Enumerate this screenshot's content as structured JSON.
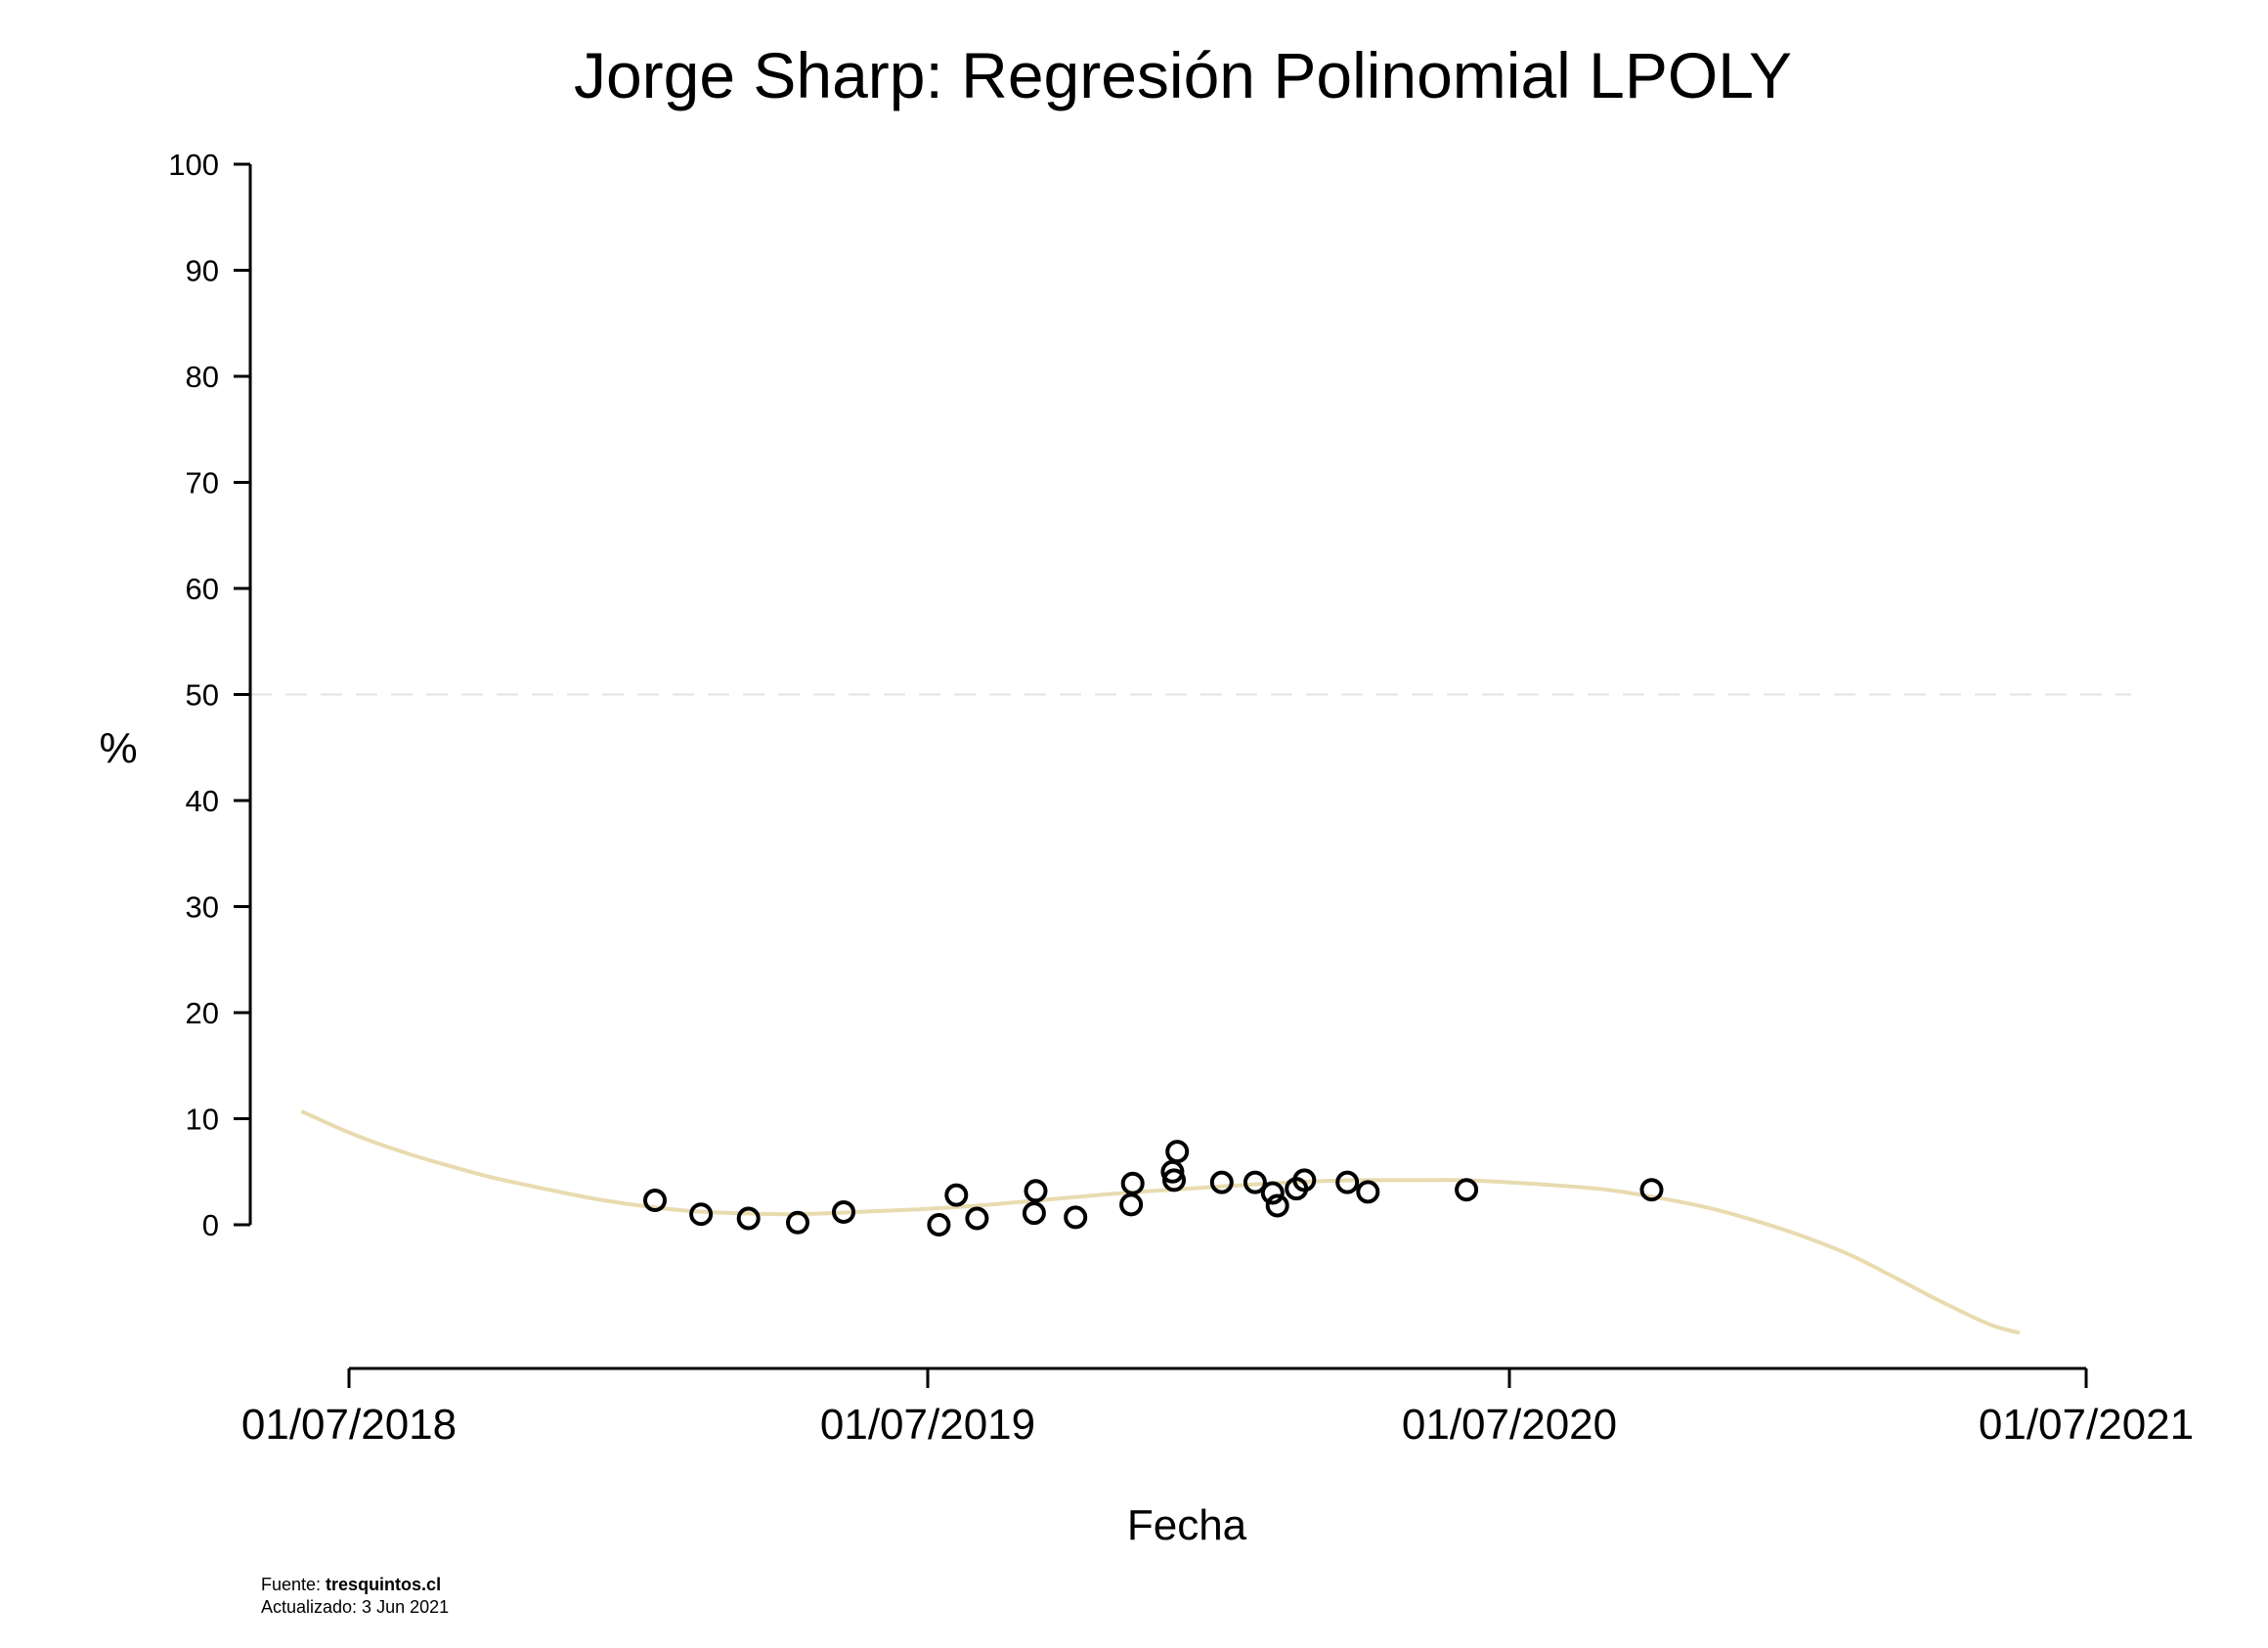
{
  "chart_data": {
    "type": "scatter",
    "title": "Jorge Sharp: Regresión Polinomial LPOLY",
    "xlabel": "Fecha",
    "ylabel": "%",
    "xlim": [
      "2018-05-20",
      "2021-07-25"
    ],
    "ylim": [
      -10,
      100
    ],
    "yticks": [
      0,
      10,
      20,
      30,
      40,
      50,
      60,
      70,
      80,
      90,
      100
    ],
    "xticks": [
      "2018-07-01",
      "2019-07-01",
      "2020-07-01",
      "2021-07-01"
    ],
    "xtick_labels": [
      "01/07/2018",
      "01/07/2019",
      "01/07/2020",
      "01/07/2021"
    ],
    "reference_line": {
      "y": 50,
      "style": "dashed",
      "color": "#e3e3e3"
    },
    "series": [
      {
        "type": "scatter",
        "marker": "open-circle",
        "color": "#000000",
        "points": [
          {
            "x": "2019-01-10",
            "y": 2.3
          },
          {
            "x": "2019-02-08",
            "y": 1.0
          },
          {
            "x": "2019-03-10",
            "y": 0.6
          },
          {
            "x": "2019-04-10",
            "y": 0.2
          },
          {
            "x": "2019-05-09",
            "y": 1.2
          },
          {
            "x": "2019-07-08",
            "y": 0.0
          },
          {
            "x": "2019-07-19",
            "y": 2.8
          },
          {
            "x": "2019-08-01",
            "y": 0.6
          },
          {
            "x": "2019-09-06",
            "y": 1.1
          },
          {
            "x": "2019-09-07",
            "y": 3.2
          },
          {
            "x": "2019-10-02",
            "y": 0.7
          },
          {
            "x": "2019-11-06",
            "y": 1.9
          },
          {
            "x": "2019-11-07",
            "y": 3.9
          },
          {
            "x": "2019-12-02",
            "y": 5.0
          },
          {
            "x": "2019-12-03",
            "y": 4.2
          },
          {
            "x": "2019-12-05",
            "y": 6.9
          },
          {
            "x": "2020-01-02",
            "y": 4.0
          },
          {
            "x": "2020-01-23",
            "y": 4.0
          },
          {
            "x": "2020-02-03",
            "y": 3.0
          },
          {
            "x": "2020-02-06",
            "y": 1.8
          },
          {
            "x": "2020-02-18",
            "y": 3.4
          },
          {
            "x": "2020-02-23",
            "y": 4.2
          },
          {
            "x": "2020-03-21",
            "y": 4.0
          },
          {
            "x": "2020-04-03",
            "y": 3.1
          },
          {
            "x": "2020-06-04",
            "y": 3.3
          },
          {
            "x": "2020-09-29",
            "y": 3.3
          }
        ]
      },
      {
        "type": "line",
        "color": "#e8dbb0",
        "points": [
          {
            "x": "2018-06-01",
            "y": 10.7
          },
          {
            "x": "2018-07-01",
            "y": 8.7
          },
          {
            "x": "2018-08-01",
            "y": 7.0
          },
          {
            "x": "2018-09-01",
            "y": 5.6
          },
          {
            "x": "2018-10-01",
            "y": 4.4
          },
          {
            "x": "2018-11-01",
            "y": 3.4
          },
          {
            "x": "2018-12-01",
            "y": 2.5
          },
          {
            "x": "2019-01-01",
            "y": 1.8
          },
          {
            "x": "2019-02-01",
            "y": 1.3
          },
          {
            "x": "2019-03-01",
            "y": 1.1
          },
          {
            "x": "2019-04-01",
            "y": 1.0
          },
          {
            "x": "2019-05-01",
            "y": 1.1
          },
          {
            "x": "2019-06-01",
            "y": 1.3
          },
          {
            "x": "2019-07-01",
            "y": 1.5
          },
          {
            "x": "2019-08-01",
            "y": 1.8
          },
          {
            "x": "2019-09-01",
            "y": 2.2
          },
          {
            "x": "2019-10-01",
            "y": 2.6
          },
          {
            "x": "2019-11-01",
            "y": 3.0
          },
          {
            "x": "2019-12-01",
            "y": 3.3
          },
          {
            "x": "2020-01-01",
            "y": 3.6
          },
          {
            "x": "2020-02-01",
            "y": 3.9
          },
          {
            "x": "2020-03-01",
            "y": 4.1
          },
          {
            "x": "2020-04-01",
            "y": 4.2
          },
          {
            "x": "2020-05-01",
            "y": 4.2
          },
          {
            "x": "2020-06-01",
            "y": 4.2
          },
          {
            "x": "2020-07-01",
            "y": 4.0
          },
          {
            "x": "2020-08-01",
            "y": 3.7
          },
          {
            "x": "2020-09-01",
            "y": 3.3
          },
          {
            "x": "2020-10-01",
            "y": 2.6
          },
          {
            "x": "2020-11-01",
            "y": 1.7
          },
          {
            "x": "2020-12-01",
            "y": 0.5
          },
          {
            "x": "2021-01-01",
            "y": -1.0
          },
          {
            "x": "2021-02-01",
            "y": -2.8
          },
          {
            "x": "2021-03-01",
            "y": -4.9
          },
          {
            "x": "2021-04-01",
            "y": -7.3
          },
          {
            "x": "2021-05-01",
            "y": -9.4
          },
          {
            "x": "2021-05-20",
            "y": -10.2
          }
        ]
      }
    ]
  },
  "footer": {
    "source_prefix": "Fuente: ",
    "source_name": "tresquintos.cl",
    "updated": "Actualizado: 3 Jun 2021"
  }
}
